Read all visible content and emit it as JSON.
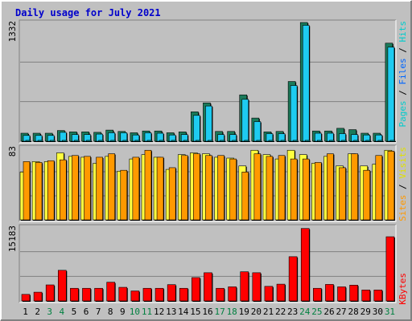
{
  "title": "Daily usage for July 2021",
  "colors": {
    "background": "#c0c0c0",
    "plot_background": "#c0c0c0",
    "title": "#0000cc",
    "hits": "#00cccc",
    "files": "#0066ff",
    "pages": "#00cccc",
    "hits_bar": "#1a7a5a",
    "files_bar": "#1ecbf0",
    "visits_bar": "#ffff40",
    "sites_bar": "#ff9900",
    "kbytes_bar": "#ff0000",
    "weekend_day": "#008040",
    "weekday": "#000000"
  },
  "chart_data": [
    {
      "type": "bar",
      "panel": "hits-files",
      "ylabel_max": "1332",
      "ylim": [
        0,
        1332
      ],
      "right_label": {
        "parts": [
          "Pages",
          "Files",
          "Hits"
        ],
        "separator": " / "
      },
      "categories": [
        "1",
        "2",
        "3",
        "4",
        "5",
        "6",
        "7",
        "8",
        "9",
        "10",
        "11",
        "12",
        "13",
        "14",
        "15",
        "16",
        "17",
        "18",
        "19",
        "20",
        "21",
        "22",
        "23",
        "24",
        "25",
        "26",
        "27",
        "28",
        "29",
        "30",
        "31"
      ],
      "series": [
        {
          "name": "Hits",
          "values": [
            90,
            90,
            90,
            120,
            105,
            105,
            100,
            125,
            110,
            95,
            115,
            115,
            95,
            105,
            330,
            430,
            110,
            110,
            520,
            260,
            105,
            110,
            670,
            1332,
            115,
            115,
            145,
            130,
            90,
            90,
            1100
          ]
        },
        {
          "name": "Files",
          "values": [
            65,
            65,
            65,
            100,
            75,
            75,
            80,
            95,
            95,
            70,
            95,
            90,
            70,
            75,
            290,
            395,
            75,
            75,
            470,
            220,
            85,
            85,
            625,
            1300,
            90,
            90,
            85,
            75,
            70,
            70,
            1055
          ]
        },
        {
          "name": "Pages",
          "values": [
            10,
            10,
            10,
            10,
            10,
            10,
            10,
            10,
            10,
            10,
            10,
            10,
            10,
            10,
            10,
            10,
            10,
            10,
            10,
            10,
            10,
            10,
            10,
            10,
            10,
            10,
            10,
            10,
            10,
            10,
            10
          ]
        }
      ]
    },
    {
      "type": "bar",
      "panel": "visits-sites",
      "ylabel_max": "83",
      "ylim": [
        0,
        83
      ],
      "right_label": {
        "parts": [
          "Sites",
          "Visits"
        ],
        "separator": " / "
      },
      "categories": [
        "1",
        "2",
        "3",
        "4",
        "5",
        "6",
        "7",
        "8",
        "9",
        "10",
        "11",
        "12",
        "13",
        "14",
        "15",
        "16",
        "17",
        "18",
        "19",
        "20",
        "21",
        "22",
        "23",
        "24",
        "25",
        "26",
        "27",
        "28",
        "29",
        "30",
        "31"
      ],
      "series": [
        {
          "name": "Visits",
          "values": [
            55,
            67,
            67,
            77,
            73,
            72,
            65,
            73,
            56,
            70,
            75,
            72,
            58,
            75,
            77,
            76,
            72,
            71,
            62,
            80,
            75,
            70,
            80,
            75,
            65,
            73,
            62,
            76,
            62,
            64,
            80
          ]
        },
        {
          "name": "Sites",
          "values": [
            67,
            66,
            68,
            69,
            74,
            73,
            72,
            76,
            57,
            72,
            80,
            72,
            60,
            74,
            76,
            74,
            74,
            70,
            55,
            76,
            73,
            74,
            70,
            70,
            66,
            76,
            60,
            76,
            57,
            74,
            79
          ]
        }
      ]
    },
    {
      "type": "bar",
      "panel": "kbytes",
      "ylabel_max": "15183",
      "ylim": [
        0,
        15183
      ],
      "right_label": {
        "parts": [
          "KBytes"
        ],
        "separator": ""
      },
      "categories": [
        "1",
        "2",
        "3",
        "4",
        "5",
        "6",
        "7",
        "8",
        "9",
        "10",
        "11",
        "12",
        "13",
        "14",
        "15",
        "16",
        "17",
        "18",
        "19",
        "20",
        "21",
        "22",
        "23",
        "24",
        "25",
        "26",
        "27",
        "28",
        "29",
        "30",
        "31"
      ],
      "series": [
        {
          "name": "KBytes",
          "values": [
            1350,
            1800,
            3300,
            6300,
            2600,
            2600,
            2600,
            3850,
            2800,
            2050,
            2600,
            2600,
            3350,
            2600,
            4800,
            5800,
            2600,
            2900,
            6000,
            5800,
            3000,
            3450,
            9100,
            14900,
            2600,
            3400,
            2900,
            3250,
            2250,
            2250,
            13200
          ]
        }
      ]
    }
  ]
}
